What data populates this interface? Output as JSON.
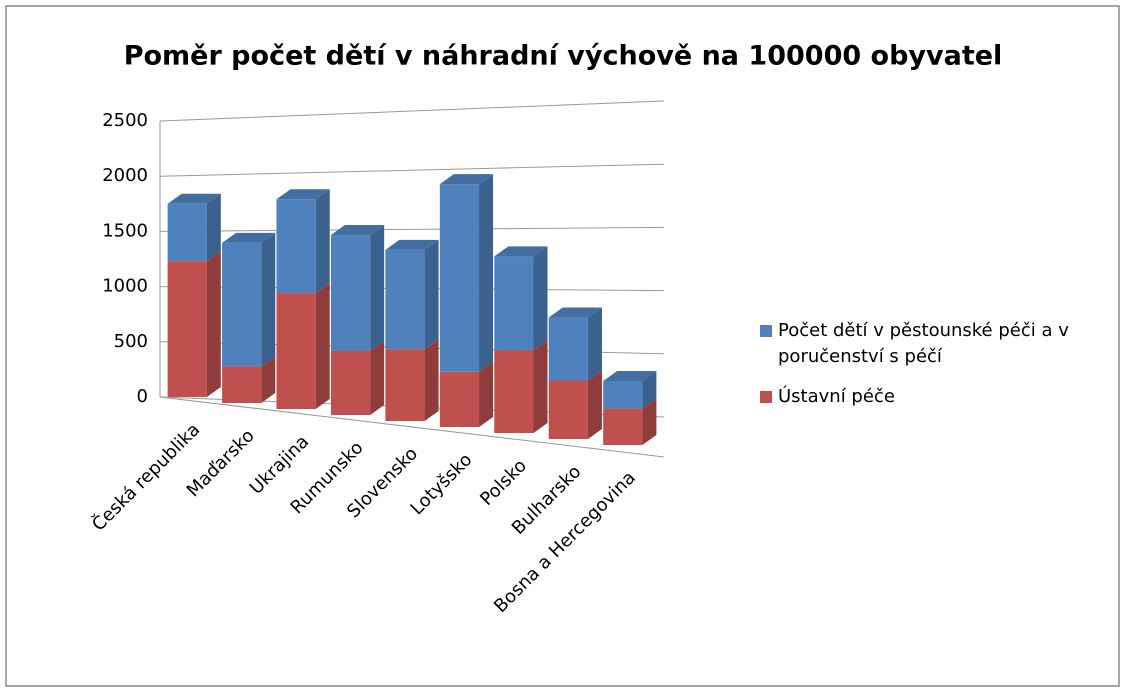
{
  "chart_data": {
    "type": "bar",
    "stacked": true,
    "title": "Poměr počet dětí v náhradní výchově na 100000 obyvatel",
    "categories": [
      "Česká republika",
      "Maďarsko",
      "Ukrajina",
      "Rumunsko",
      "Slovensko",
      "Lotyšsko",
      "Polsko",
      "Bulharsko",
      "Bosna a Hercegovina"
    ],
    "series": [
      {
        "name": "Ústavní péče",
        "color": "#c0504d",
        "values": [
          1230,
          330,
          1050,
          580,
          650,
          500,
          750,
          530,
          330
        ]
      },
      {
        "name": "Počet dětí v pěstounské péči a v poručenství s péčí",
        "color": "#4f81bd",
        "values": [
          520,
          1120,
          850,
          1050,
          900,
          1700,
          850,
          570,
          250
        ]
      }
    ],
    "ylim": [
      0,
      2500
    ],
    "yticks": [
      0,
      500,
      1000,
      1500,
      2000,
      2500
    ],
    "grid": true,
    "legend": "right"
  }
}
